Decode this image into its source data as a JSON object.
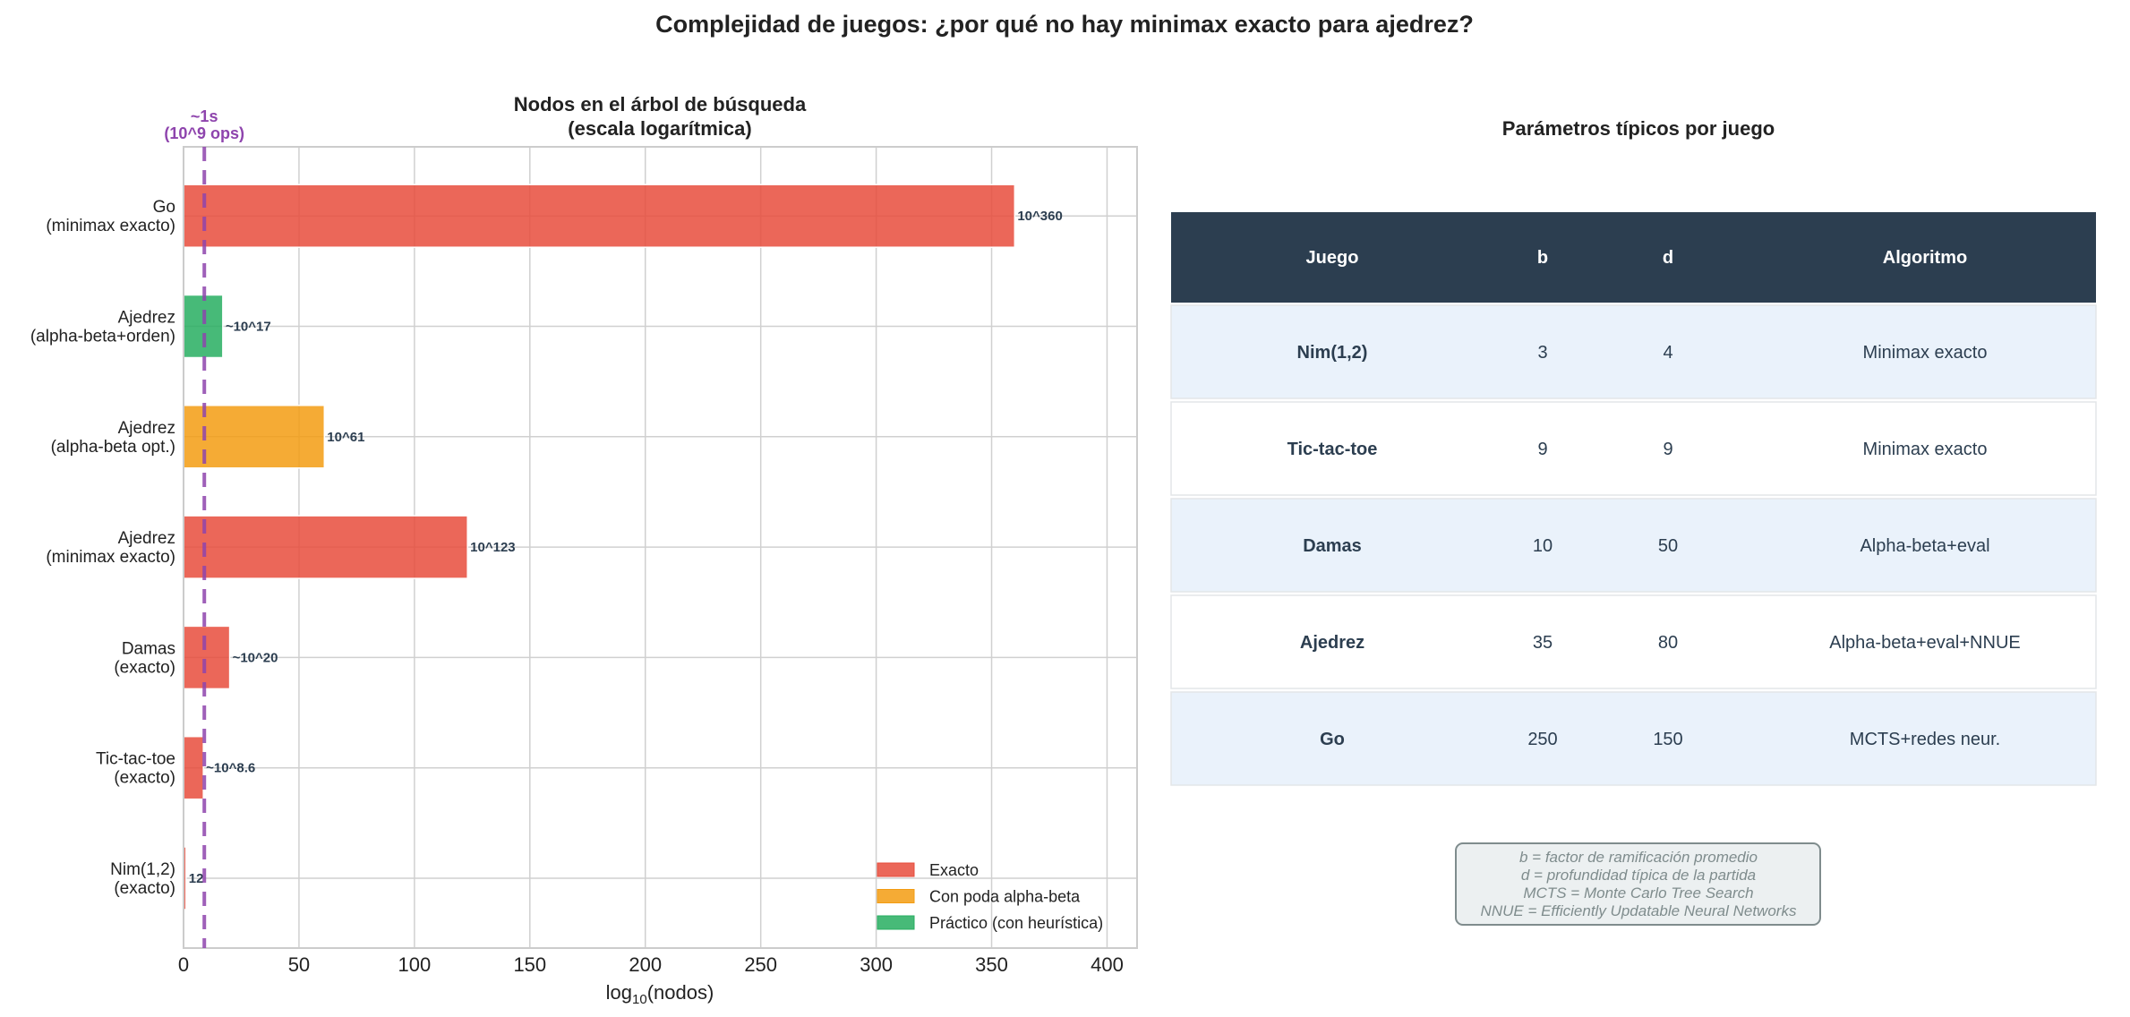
{
  "title": "Complejidad de juegos: ¿por qué no hay minimax exacto para ajedrez?",
  "chart_data": {
    "type": "bar",
    "orientation": "horizontal",
    "title": [
      "Nodos en el árbol de búsqueda",
      "(escala logarítmica)"
    ],
    "xlabel_main": "log",
    "xlabel_sub": "10",
    "xlabel_tail": "(nodos)",
    "xlim": [
      0,
      413
    ],
    "xticks": [
      "0",
      "50",
      "100",
      "150",
      "200",
      "250",
      "300",
      "350",
      "400"
    ],
    "grid": true,
    "legend_position": "lower-right",
    "legend": [
      {
        "name": "Exacto",
        "color": "#e74c3c"
      },
      {
        "name": "Con poda alpha-beta",
        "color": "#f39c12"
      },
      {
        "name": "Práctico (con heurística)",
        "color": "#27ae60"
      }
    ],
    "categories": [
      [
        "Nim(1,2)",
        "(exacto)"
      ],
      [
        "Tic-tac-toe",
        "(exacto)"
      ],
      [
        "Damas",
        "(exacto)"
      ],
      [
        "Ajedrez",
        "(minimax exacto)"
      ],
      [
        "Ajedrez",
        "(alpha-beta opt.)"
      ],
      [
        "Ajedrez",
        "(alpha-beta+orden)"
      ],
      [
        "Go",
        "(minimax exacto)"
      ]
    ],
    "values": [
      1.08,
      8.6,
      20,
      123,
      61,
      17,
      360
    ],
    "value_labels": [
      "12",
      "~10^8.6",
      "~10^20",
      "10^123",
      "10^61",
      "~10^17",
      "10^360"
    ],
    "groups": [
      0,
      0,
      0,
      0,
      1,
      2,
      0
    ],
    "reference_line": {
      "x": 9,
      "label": [
        "~1s",
        "(10^9 ops)"
      ],
      "color": "#8e44ad"
    }
  },
  "table": {
    "title": "Parámetros típicos por juego",
    "headers": [
      "Juego",
      "b",
      "d",
      "Algoritmo"
    ],
    "rows": [
      [
        "Nim(1,2)",
        "3",
        "4",
        "Minimax exacto"
      ],
      [
        "Tic-tac-toe",
        "9",
        "9",
        "Minimax exacto"
      ],
      [
        "Damas",
        "10",
        "50",
        "Alpha-beta+eval"
      ],
      [
        "Ajedrez",
        "35",
        "80",
        "Alpha-beta+eval+NNUE"
      ],
      [
        "Go",
        "250",
        "150",
        "MCTS+redes neur."
      ]
    ],
    "header_color": "#2c3e50",
    "row_colors": [
      "#eaf2fb",
      "#ffffff"
    ]
  },
  "notes": [
    "b = factor de ramificación promedio",
    "d = profundidad típica de la partida",
    "MCTS = Monte Carlo Tree Search",
    "NNUE = Efficiently Updatable Neural Networks"
  ]
}
